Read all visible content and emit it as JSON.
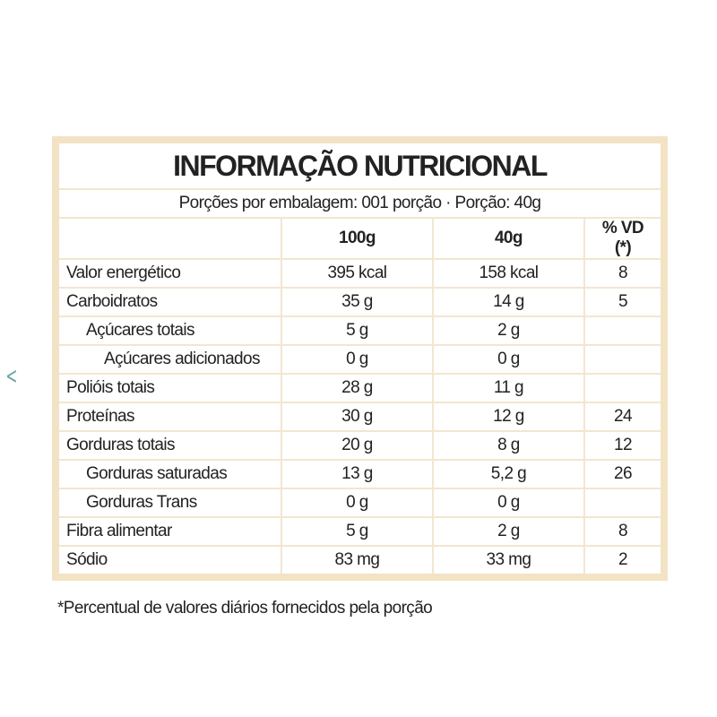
{
  "nav": {
    "previous": "<"
  },
  "table": {
    "title": "INFORMAÇÃO NUTRICIONAL",
    "subtitle": "Porções por embalagem: 001 porção · Porção: 40g",
    "header": [
      "100g",
      "40g",
      "% VD (*)"
    ],
    "rows": [
      {
        "label": "Valor energético",
        "per100g": "395 kcal",
        "per40g": "158 kcal",
        "vd": "8"
      },
      {
        "label": "Carboidratos",
        "per100g": "35 g",
        "per40g": "14 g",
        "vd": "5"
      },
      {
        "label": "Açúcares totais",
        "per100g": "5 g",
        "per40g": "2 g"
      },
      {
        "label": "Açúcares adicionados",
        "per100g": "0 g",
        "per40g": "0 g"
      },
      {
        "label": "Polióis totais",
        "per100g": "28 g",
        "per40g": "11 g"
      },
      {
        "label": "Proteínas",
        "per100g": "30 g",
        "per40g": "12 g",
        "vd": "24"
      },
      {
        "label": "Gorduras totais",
        "per100g": "20 g",
        "per40g": "8 g",
        "vd": "12"
      },
      {
        "label": "Gorduras saturadas",
        "per100g": "13 g",
        "per40g": "5,2 g",
        "vd": "26"
      },
      {
        "label": "Gorduras Trans",
        "per100g": "0 g",
        "per40g": "0 g"
      },
      {
        "label": "Fibra alimentar",
        "per100g": "5 g",
        "per40g": "2 g",
        "vd": "8"
      },
      {
        "label": "Sódio",
        "per100g": "83 mg",
        "per40g": "33 mg",
        "vd": "2"
      }
    ],
    "footnote": "*Percentual de valores diários fornecidos pela porção"
  }
}
